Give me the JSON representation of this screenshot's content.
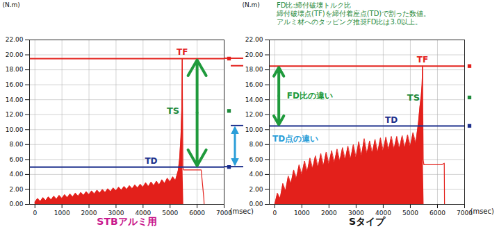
{
  "chart_data": [
    {
      "type": "area",
      "title": "STBアルミ用",
      "xlabel": "(msec)",
      "ylabel": "(N.m)",
      "x": [
        0,
        100,
        200,
        300,
        400,
        500,
        600,
        700,
        800,
        900,
        1000,
        1100,
        1200,
        1300,
        1400,
        1500,
        1600,
        1700,
        1800,
        1900,
        2000,
        2100,
        2200,
        2300,
        2400,
        2500,
        2600,
        2700,
        2800,
        2900,
        3000,
        3100,
        3200,
        3300,
        3400,
        3500,
        3600,
        3700,
        3800,
        3900,
        4000,
        4100,
        4200,
        4300,
        4400,
        4500,
        4600,
        4700,
        4800,
        4900,
        5000,
        5100,
        5200,
        5300,
        5350,
        5400,
        5430,
        5450,
        5470,
        5500,
        6150,
        6250,
        6260,
        7000
      ],
      "series": [
        {
          "type": "area",
          "color": "#e3201b",
          "values": [
            0.3,
            0.8,
            0.4,
            0.9,
            0.5,
            1.0,
            0.6,
            1.1,
            0.7,
            1.2,
            0.8,
            1.3,
            0.9,
            1.4,
            1.0,
            1.5,
            1.1,
            1.6,
            1.2,
            1.7,
            1.3,
            1.8,
            1.4,
            1.9,
            1.5,
            2.0,
            1.6,
            2.1,
            1.7,
            2.2,
            1.8,
            2.3,
            1.9,
            2.4,
            2.0,
            2.5,
            2.1,
            2.6,
            2.2,
            2.7,
            2.3,
            2.9,
            2.4,
            3.0,
            2.5,
            3.1,
            2.6,
            3.3,
            2.8,
            3.5,
            3.0,
            3.7,
            3.2,
            4.5,
            6.0,
            9.0,
            12.5,
            19.5,
            5.0,
            null,
            null,
            null,
            null,
            null
          ]
        },
        {
          "type": "line",
          "color": "#e3201b",
          "values": [
            null,
            null,
            null,
            null,
            null,
            null,
            null,
            null,
            null,
            null,
            null,
            null,
            null,
            null,
            null,
            null,
            null,
            null,
            null,
            null,
            null,
            null,
            null,
            null,
            null,
            null,
            null,
            null,
            null,
            null,
            null,
            null,
            null,
            null,
            null,
            null,
            null,
            null,
            null,
            null,
            null,
            null,
            null,
            null,
            null,
            null,
            null,
            null,
            null,
            null,
            null,
            null,
            null,
            null,
            null,
            null,
            null,
            19.5,
            5.0,
            4.6,
            4.6,
            0.8,
            0,
            0
          ]
        }
      ],
      "reference_lines": [
        {
          "label": "TF",
          "value": 19.5,
          "color": "#e3201b"
        },
        {
          "label": "TD",
          "value": 5.0,
          "color": "#1c2f8c"
        }
      ],
      "points": [
        {
          "label": "TS",
          "value": 12.5,
          "color": "#1f8a3c"
        }
      ],
      "xlim": [
        -200,
        7000
      ],
      "xticks": [
        0,
        1000,
        2000,
        3000,
        4000,
        5000,
        6000,
        7000
      ],
      "ylim": [
        0,
        22
      ],
      "yticks": [
        {
          "value": 0,
          "label": "0.00"
        },
        {
          "value": 2,
          "label": "2.00"
        },
        {
          "value": 4,
          "label": "4.00"
        },
        {
          "value": 6,
          "label": "6.00"
        },
        {
          "value": 8,
          "label": "8.00"
        },
        {
          "value": 10,
          "label": "10.00"
        },
        {
          "value": 12,
          "label": "12.00"
        },
        {
          "value": 14,
          "label": "14.00"
        },
        {
          "value": 16,
          "label": "16.00"
        },
        {
          "value": 18,
          "label": "18.00"
        },
        {
          "value": 20,
          "label": "20.00"
        },
        {
          "value": 22,
          "label": "22.00"
        }
      ],
      "grid": true
    },
    {
      "type": "area",
      "title": "Sタイプ",
      "xlabel": "(msec)",
      "ylabel": "(N.m)",
      "x": [
        0,
        100,
        200,
        300,
        400,
        500,
        600,
        700,
        800,
        900,
        1000,
        1100,
        1200,
        1300,
        1400,
        1500,
        1600,
        1700,
        1800,
        1900,
        2000,
        2100,
        2200,
        2300,
        2400,
        2500,
        2600,
        2700,
        2800,
        2900,
        3000,
        3100,
        3200,
        3300,
        3400,
        3500,
        3600,
        3700,
        3800,
        3900,
        4000,
        4100,
        4200,
        4300,
        4400,
        4500,
        4600,
        4700,
        4800,
        4900,
        5000,
        5100,
        5200,
        5300,
        5350,
        5400,
        5430,
        5450,
        5470,
        5500,
        6150,
        6250,
        6260,
        7000
      ],
      "series": [
        {
          "type": "area",
          "color": "#e3201b",
          "values": [
            0,
            1.5,
            0.8,
            2.8,
            1.8,
            3.8,
            2.8,
            4.6,
            3.5,
            5.3,
            4.0,
            5.8,
            4.4,
            6.2,
            4.8,
            6.5,
            5.0,
            6.8,
            5.2,
            7.0,
            5.4,
            7.2,
            5.6,
            7.4,
            5.8,
            7.6,
            6.0,
            7.8,
            6.1,
            8.0,
            6.3,
            8.4,
            6.5,
            8.8,
            6.8,
            8.5,
            6.9,
            8.7,
            7.0,
            8.9,
            7.2,
            9.0,
            7.3,
            9.1,
            7.4,
            9.1,
            7.5,
            9.2,
            7.6,
            9.3,
            7.8,
            9.6,
            8.2,
            11.0,
            13.0,
            14.5,
            16.0,
            18.5,
            6.0,
            null,
            null,
            null,
            null,
            null
          ]
        },
        {
          "type": "line",
          "color": "#e3201b",
          "values": [
            null,
            null,
            null,
            null,
            null,
            null,
            null,
            null,
            null,
            null,
            null,
            null,
            null,
            null,
            null,
            null,
            null,
            null,
            null,
            null,
            null,
            null,
            null,
            null,
            null,
            null,
            null,
            null,
            null,
            null,
            null,
            null,
            null,
            null,
            null,
            null,
            null,
            null,
            null,
            null,
            null,
            null,
            null,
            null,
            null,
            null,
            null,
            null,
            null,
            null,
            null,
            null,
            null,
            null,
            null,
            null,
            null,
            18.5,
            6.0,
            5.3,
            5.3,
            5.5,
            0,
            0
          ]
        }
      ],
      "reference_lines": [
        {
          "label": "TF",
          "value": 18.5,
          "color": "#e3201b"
        },
        {
          "label": "TD",
          "value": 10.5,
          "color": "#1c2f8c"
        }
      ],
      "points": [
        {
          "label": "TS",
          "value": 14.3,
          "color": "#1f8a3c"
        }
      ],
      "xlim": [
        -200,
        7000
      ],
      "xticks": [
        0,
        1000,
        2000,
        3000,
        4000,
        5000,
        6000,
        7000
      ],
      "ylim": [
        0,
        22
      ],
      "yticks": [
        {
          "value": 0,
          "label": "0.00"
        },
        {
          "value": 2,
          "label": "2.00"
        },
        {
          "value": 4,
          "label": "4.00"
        },
        {
          "value": 6,
          "label": "6.00"
        },
        {
          "value": 8,
          "label": "8.00"
        },
        {
          "value": 10,
          "label": "10.00"
        },
        {
          "value": 12,
          "label": "12.00"
        },
        {
          "value": 14,
          "label": "14.00"
        },
        {
          "value": 16,
          "label": "16.00"
        },
        {
          "value": 18,
          "label": "18.00"
        },
        {
          "value": 20,
          "label": "20.00"
        },
        {
          "value": 22,
          "label": "22.00"
        }
      ],
      "grid": true
    }
  ],
  "annotations": {
    "note": [
      "FD比:締付破壊トルク比",
      "締付破壊点(TF)を締付着座点(TD)で割った数値。",
      "アルミ材へのタッピング推奨FD比は3.0以上。"
    ],
    "fd_difference": "FD比の違い",
    "td_difference": "TD点の違い"
  }
}
